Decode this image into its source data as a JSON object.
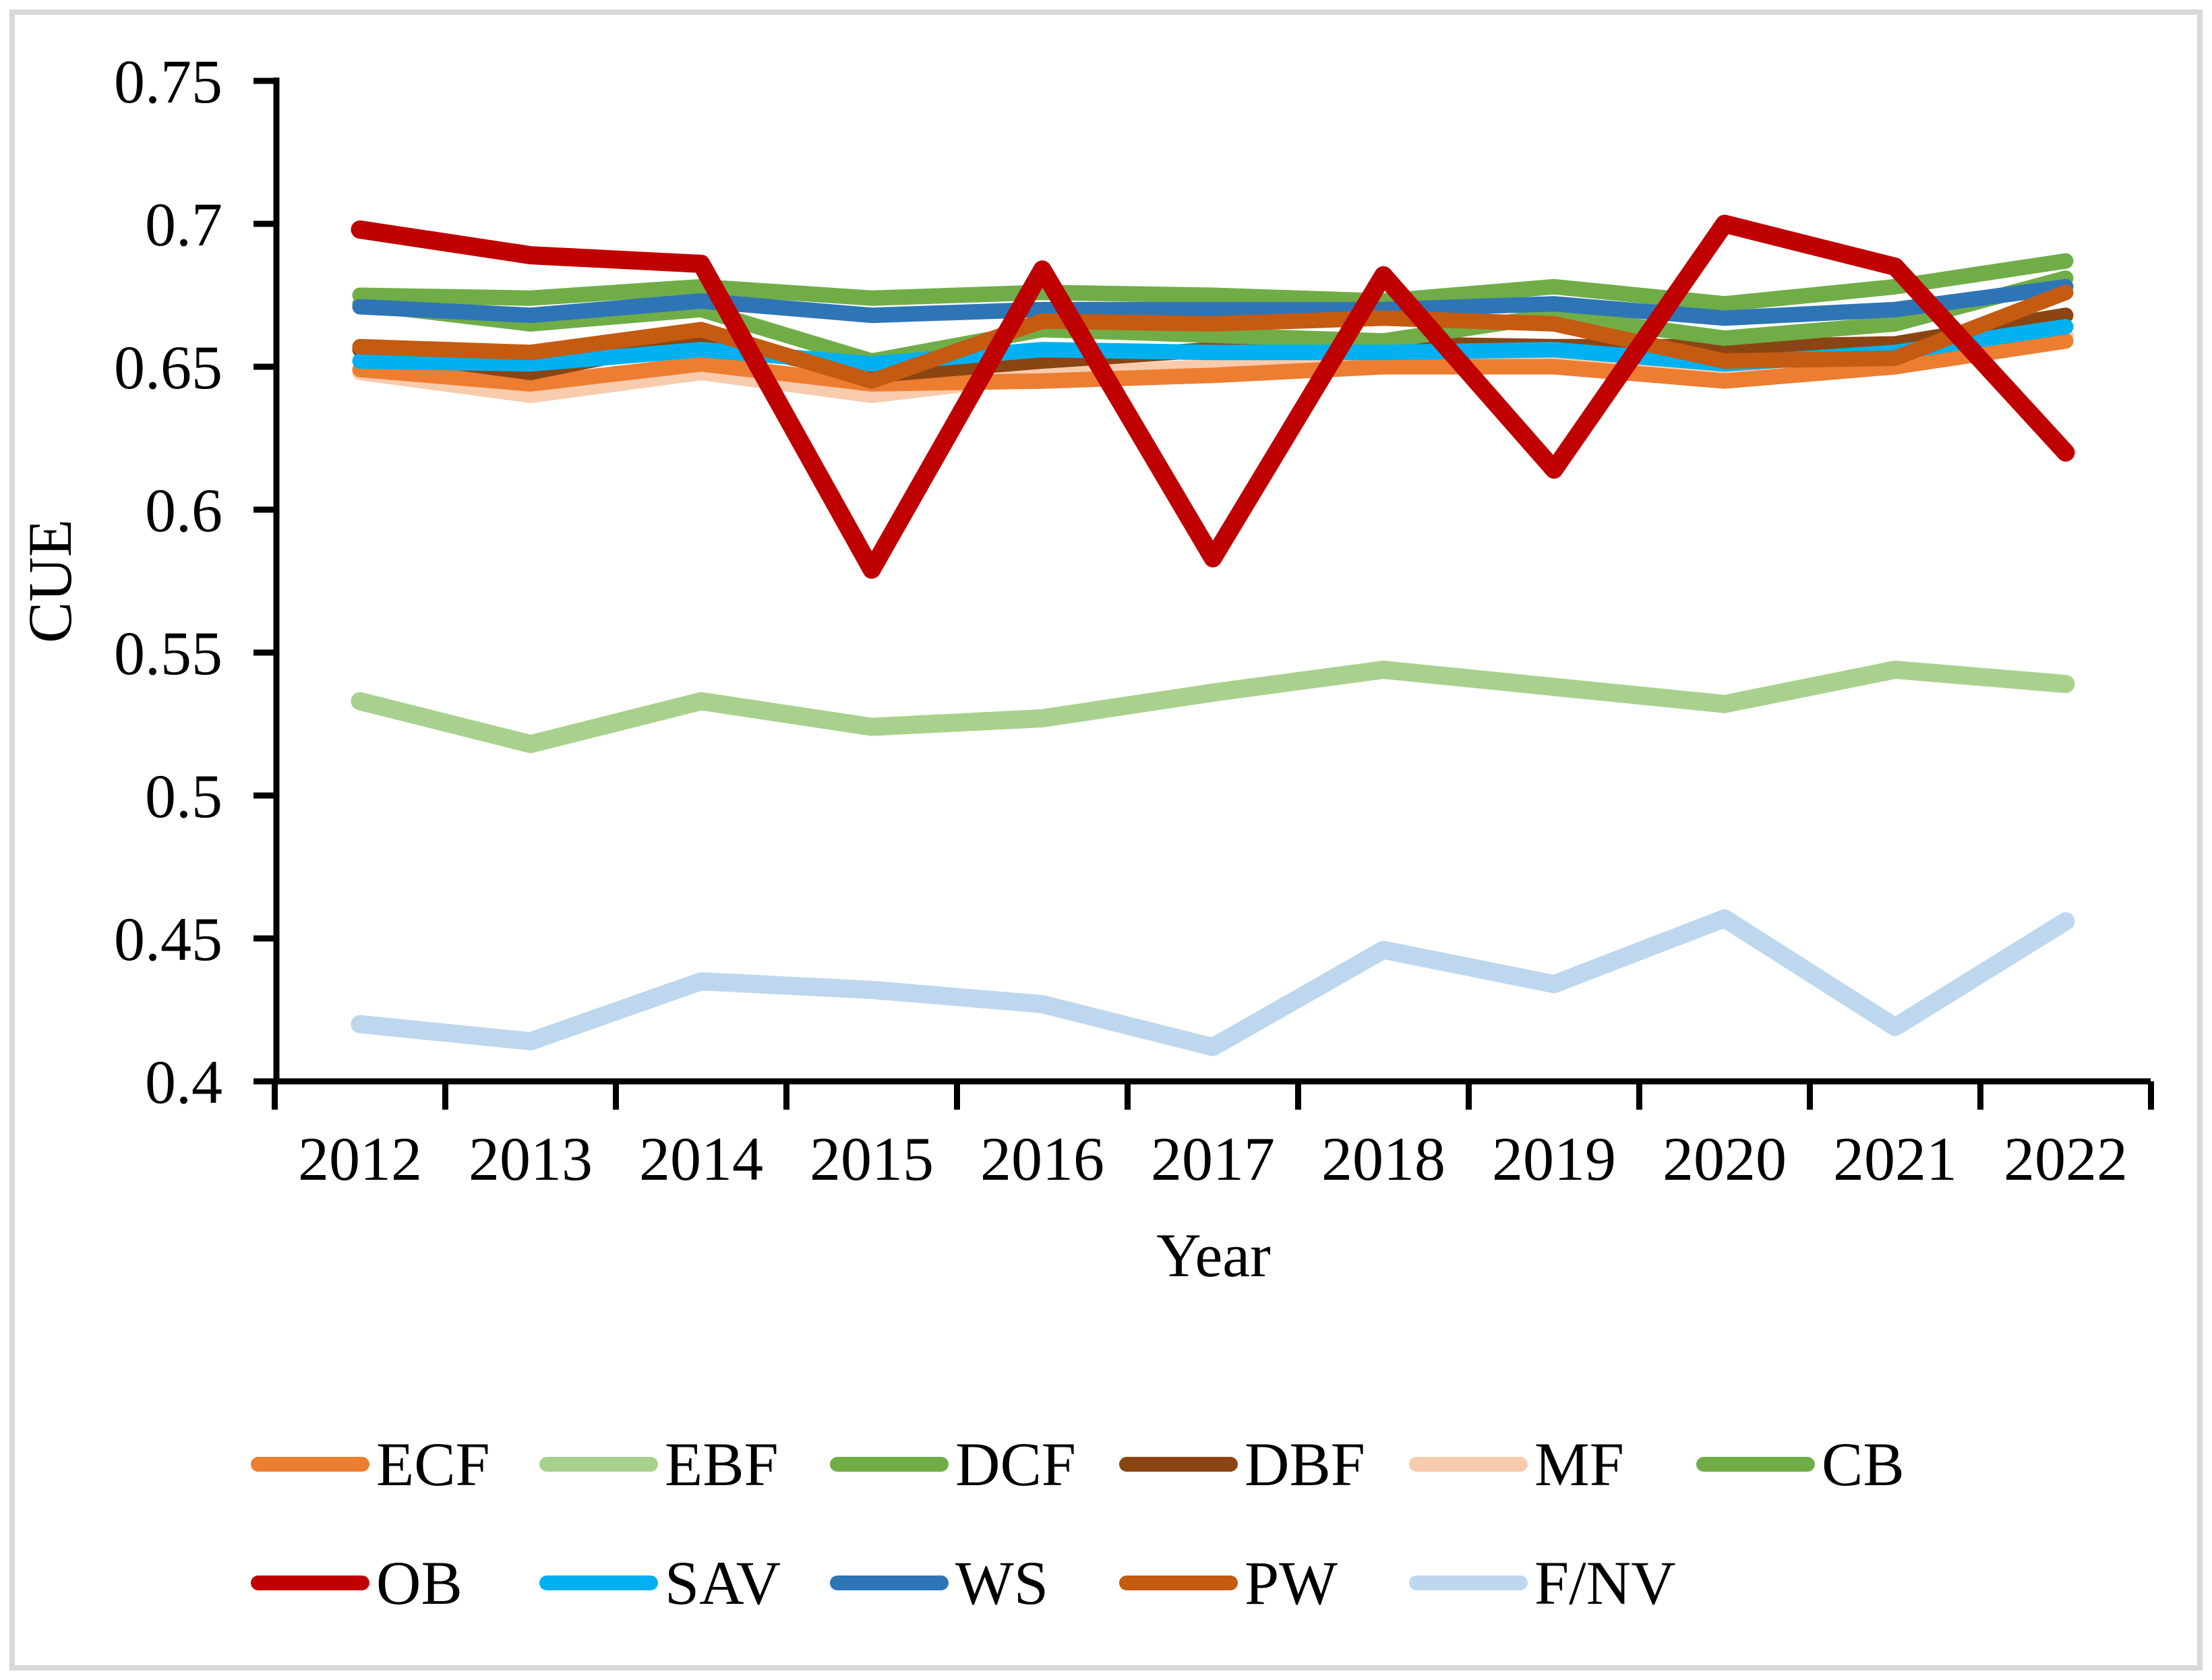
{
  "figure": {
    "background": "#ffffff",
    "border_color": "#d9d9d9"
  },
  "chart_data": {
    "type": "line",
    "title": "",
    "xlabel": "Year",
    "ylabel": "CUE",
    "x": [
      2012,
      2013,
      2014,
      2015,
      2016,
      2017,
      2018,
      2019,
      2020,
      2021,
      2022
    ],
    "ylim": [
      0.4,
      0.75
    ],
    "ytick_step": 0.05,
    "yticks": [
      "0.75",
      "0.7",
      "0.65",
      "0.6",
      "0.55",
      "0.5",
      "0.45",
      "0.4"
    ],
    "grid": false,
    "legend_position": "bottom",
    "legend_rows": [
      [
        "ECF",
        "EBF",
        "DCF",
        "DBF",
        "MF",
        "CB"
      ],
      [
        "OB",
        "SAV",
        "WS",
        "PW",
        "F/NV"
      ]
    ],
    "draw_order": [
      "EBF",
      "F/NV",
      "MF",
      "ECF",
      "DBF",
      "DCF",
      "CB",
      "WS",
      "SAV",
      "PW",
      "OB"
    ],
    "series": [
      {
        "name": "ECF",
        "color": "#ED7D31",
        "values": [
          0.649,
          0.644,
          0.651,
          0.644,
          0.645,
          0.647,
          0.65,
          0.65,
          0.645,
          0.65,
          0.659
        ]
      },
      {
        "name": "EBF",
        "color": "#A9D18E",
        "values": [
          0.533,
          0.518,
          0.533,
          0.524,
          0.527,
          0.536,
          0.544,
          0.538,
          0.532,
          0.544,
          0.539
        ]
      },
      {
        "name": "DCF",
        "color": "#70AD47",
        "values": [
          0.672,
          0.665,
          0.67,
          0.652,
          0.663,
          0.661,
          0.659,
          0.668,
          0.66,
          0.665,
          0.681
        ]
      },
      {
        "name": "DBF",
        "color": "#8B4513",
        "values": [
          0.656,
          0.648,
          0.66,
          0.647,
          0.652,
          0.656,
          0.658,
          0.657,
          0.657,
          0.658,
          0.668
        ]
      },
      {
        "name": "MF",
        "color": "#F8CBAD",
        "values": [
          0.648,
          0.64,
          0.648,
          0.64,
          0.647,
          0.65,
          0.652,
          0.652,
          0.648,
          0.65,
          0.661
        ]
      },
      {
        "name": "CB",
        "color": "#70AD47",
        "values": [
          0.675,
          0.674,
          0.678,
          0.674,
          0.676,
          0.675,
          0.673,
          0.678,
          0.672,
          0.678,
          0.687
        ]
      },
      {
        "name": "OB",
        "color": "#C00000",
        "values": [
          0.698,
          0.689,
          0.686,
          0.579,
          0.684,
          0.583,
          0.682,
          0.614,
          0.7,
          0.685,
          0.62
        ]
      },
      {
        "name": "SAV",
        "color": "#00B0F0",
        "values": [
          0.652,
          0.651,
          0.656,
          0.651,
          0.656,
          0.655,
          0.655,
          0.656,
          0.651,
          0.655,
          0.664
        ]
      },
      {
        "name": "WS",
        "color": "#2E75B6",
        "values": [
          0.671,
          0.668,
          0.673,
          0.668,
          0.67,
          0.67,
          0.67,
          0.672,
          0.667,
          0.67,
          0.678
        ]
      },
      {
        "name": "PW",
        "color": "#C55A11",
        "values": [
          0.657,
          0.655,
          0.663,
          0.645,
          0.666,
          0.665,
          0.667,
          0.665,
          0.652,
          0.653,
          0.676
        ]
      },
      {
        "name": "F/NV",
        "color": "#BDD7EE",
        "values": [
          0.42,
          0.414,
          0.435,
          0.432,
          0.427,
          0.412,
          0.446,
          0.434,
          0.457,
          0.419,
          0.456
        ]
      }
    ]
  }
}
